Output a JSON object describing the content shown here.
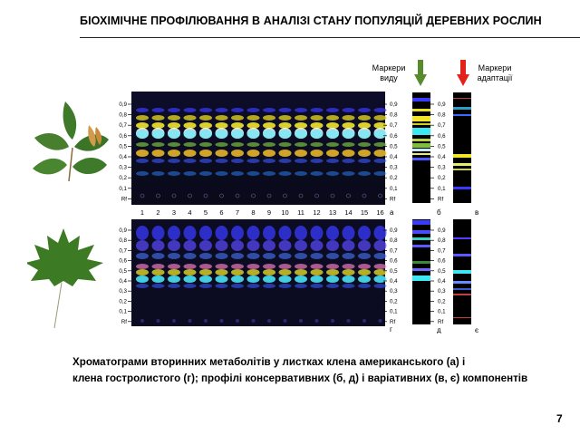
{
  "title": "БІОХІМІЧНЕ ПРОФІЛЮВАННЯ  В АНАЛІЗІ СТАНУ ПОПУЛЯЦІЙ ДЕРЕВНИХ РОСЛИН",
  "markers": {
    "species_label": "Маркери виду",
    "adaptation_label": "Маркери адаптації",
    "species_arrow_color": "#5a8a2e",
    "adaptation_arrow_color": "#e2231a"
  },
  "rf_ticks": [
    "0,9",
    "0,8",
    "0,7",
    "0,6",
    "0,5",
    "0,4",
    "0,3",
    "0,2",
    "0,1",
    "Rf"
  ],
  "lanes": [
    "1",
    "2",
    "3",
    "4",
    "5",
    "6",
    "7",
    "8",
    "9",
    "10",
    "11",
    "12",
    "13",
    "14",
    "15",
    "16"
  ],
  "panel_letters": {
    "a": "а",
    "b": "б",
    "v": "в",
    "g": "г",
    "d": "д",
    "ye": "є"
  },
  "caption_line1": "Хроматограми  вторинних  метаболітів  у листках клена американського  (а) і",
  "caption_line2": "клена  гостролистого  (г);  профілі  консервативних  (б, д)  і варіативних  (в, є)  компонентів",
  "page_number": "7",
  "icons": [
    "maple-leaf-ash-icon",
    "maple-leaf-norway-icon",
    "green-down-arrow-icon",
    "red-down-arrow-icon"
  ]
}
